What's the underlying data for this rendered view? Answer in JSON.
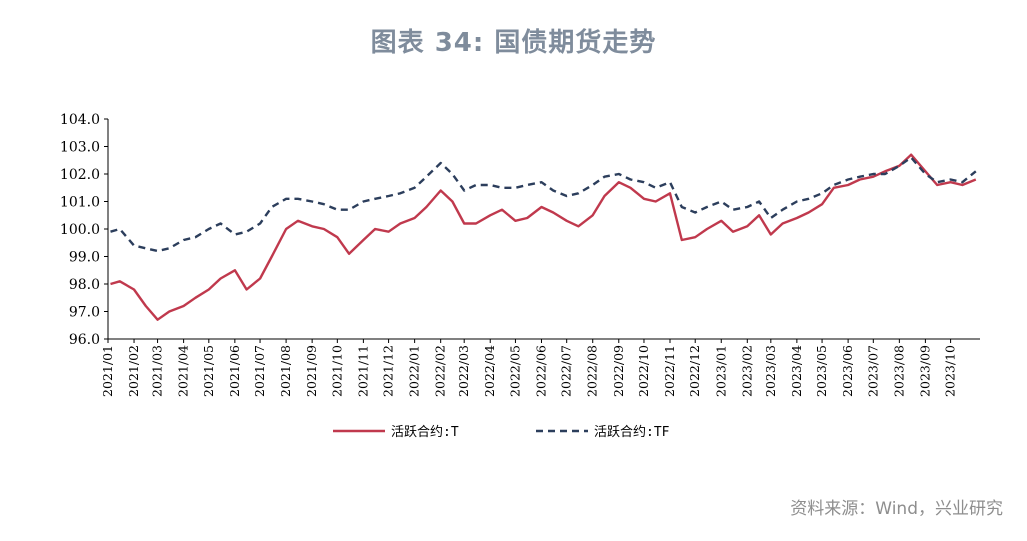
{
  "title": "图表 34: 国债期货走势",
  "source": "资料来源：Wind，兴业研究",
  "colors": {
    "T": "#c0394d",
    "TF": "#2c3e5c"
  },
  "chart_data": {
    "type": "line",
    "title": "图表 34: 国债期货走势",
    "ylim": [
      96.0,
      104.0
    ],
    "yticks": [
      "96.0",
      "97.0",
      "98.0",
      "99.0",
      "100.0",
      "101.0",
      "102.0",
      "103.0",
      "104.0"
    ],
    "x_ticks": [
      "2021/01",
      "2021/02",
      "2021/03",
      "2021/04",
      "2021/05",
      "2021/06",
      "2021/07",
      "2021/08",
      "2021/09",
      "2021/10",
      "2021/11",
      "2021/12",
      "2022/01",
      "2022/02",
      "2022/03",
      "2022/04",
      "2022/05",
      "2022/06",
      "2022/07",
      "2022/08",
      "2022/09",
      "2022/10",
      "2022/11",
      "2022/12",
      "2023/01",
      "2023/02",
      "2023/03",
      "2023/04",
      "2023/05",
      "2023/06",
      "2023/07",
      "2023/08",
      "2023/09",
      "2023/10"
    ],
    "legend_position": "bottom",
    "grid": false,
    "x": [
      "2021-01-04",
      "2021-01-15",
      "2021-02-01",
      "2021-02-15",
      "2021-03-01",
      "2021-03-15",
      "2021-04-01",
      "2021-04-15",
      "2021-05-01",
      "2021-05-15",
      "2021-06-01",
      "2021-06-15",
      "2021-07-01",
      "2021-07-15",
      "2021-08-01",
      "2021-08-15",
      "2021-09-01",
      "2021-09-15",
      "2021-10-01",
      "2021-10-15",
      "2021-11-01",
      "2021-11-15",
      "2021-12-01",
      "2021-12-15",
      "2022-01-01",
      "2022-01-15",
      "2022-02-01",
      "2022-02-15",
      "2022-03-01",
      "2022-03-15",
      "2022-04-01",
      "2022-04-15",
      "2022-05-01",
      "2022-05-15",
      "2022-06-01",
      "2022-06-15",
      "2022-07-01",
      "2022-07-15",
      "2022-08-01",
      "2022-08-15",
      "2022-09-01",
      "2022-09-15",
      "2022-10-01",
      "2022-10-15",
      "2022-11-01",
      "2022-11-15",
      "2022-12-01",
      "2022-12-15",
      "2023-01-01",
      "2023-01-15",
      "2023-02-01",
      "2023-02-15",
      "2023-03-01",
      "2023-03-15",
      "2023-04-01",
      "2023-04-15",
      "2023-05-01",
      "2023-05-15",
      "2023-06-01",
      "2023-06-15",
      "2023-07-01",
      "2023-07-15",
      "2023-08-01",
      "2023-08-15",
      "2023-09-01",
      "2023-09-15",
      "2023-10-01",
      "2023-10-15",
      "2023-10-31"
    ],
    "series": [
      {
        "name": "活跃合约:T",
        "style": "solid",
        "values": [
          98.0,
          98.1,
          97.8,
          97.2,
          96.7,
          97.0,
          97.2,
          97.5,
          97.8,
          98.2,
          98.5,
          97.8,
          98.2,
          99.0,
          100.0,
          100.3,
          100.1,
          100.0,
          99.7,
          99.1,
          99.6,
          100.0,
          99.9,
          100.2,
          100.4,
          100.8,
          101.4,
          101.0,
          100.2,
          100.2,
          100.5,
          100.7,
          100.3,
          100.4,
          100.8,
          100.6,
          100.3,
          100.1,
          100.5,
          101.2,
          101.7,
          101.5,
          101.1,
          101.0,
          101.3,
          99.6,
          99.7,
          100.0,
          100.3,
          99.9,
          100.1,
          100.5,
          99.8,
          100.2,
          100.4,
          100.6,
          100.9,
          101.5,
          101.6,
          101.8,
          101.9,
          102.1,
          102.3,
          102.7,
          102.1,
          101.6,
          101.7,
          101.6,
          101.8
        ]
      },
      {
        "name": "活跃合约:TF",
        "style": "dashed",
        "values": [
          99.9,
          100.0,
          99.4,
          99.3,
          99.2,
          99.3,
          99.6,
          99.7,
          100.0,
          100.2,
          99.8,
          99.9,
          100.2,
          100.8,
          101.1,
          101.1,
          101.0,
          100.9,
          100.7,
          100.7,
          101.0,
          101.1,
          101.2,
          101.3,
          101.5,
          101.9,
          102.4,
          102.0,
          101.4,
          101.6,
          101.6,
          101.5,
          101.5,
          101.6,
          101.7,
          101.4,
          101.2,
          101.3,
          101.6,
          101.9,
          102.0,
          101.8,
          101.7,
          101.5,
          101.7,
          100.8,
          100.6,
          100.8,
          101.0,
          100.7,
          100.8,
          101.0,
          100.4,
          100.7,
          101.0,
          101.1,
          101.3,
          101.6,
          101.8,
          101.9,
          102.0,
          102.0,
          102.3,
          102.6,
          102.0,
          101.7,
          101.8,
          101.7,
          102.1
        ]
      }
    ]
  }
}
